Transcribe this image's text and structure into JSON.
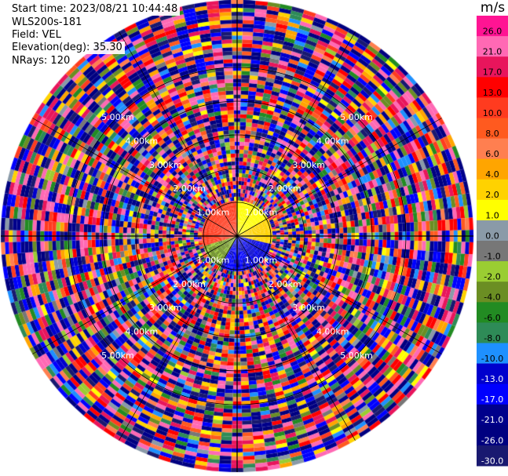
{
  "header": {
    "start_time": "Start time: 2023/08/21 10:44:48",
    "instrument": "WLS200s-181",
    "field": "Field: VEL",
    "elevation": "Elevation(deg): 35.30",
    "nrays": "NRays: 120"
  },
  "colorbar": {
    "unit": "m/s",
    "ticks": [
      "26.0",
      "21.0",
      "17.0",
      "13.0",
      "10.0",
      "8.0",
      "6.0",
      "4.0",
      "2.0",
      "1.0",
      "0.0",
      "-1.0",
      "-2.0",
      "-4.0",
      "-6.0",
      "-8.0",
      "-10.0",
      "-13.0",
      "-17.0",
      "-21.0",
      "-26.0",
      "-30.0"
    ],
    "colors": [
      "#ff1493",
      "#ff69b4",
      "#e8155c",
      "#ff0000",
      "#ff3b1f",
      "#ff5a1f",
      "#ff7f50",
      "#ffa500",
      "#ffd200",
      "#ffff00",
      "#8a9aa8",
      "#777777",
      "#9acd32",
      "#6b8e23",
      "#228b22",
      "#2e8b57",
      "#1e90ff",
      "#0000cd",
      "#0000ff",
      "#00008b",
      "#000080",
      "#191970"
    ]
  },
  "chart_data": {
    "type": "heatmap",
    "plot_kind": "polar PPI (plan position indicator)",
    "field": "VEL",
    "unit": "m/s",
    "nrays": 120,
    "elevation_deg": 35.3,
    "range_rings_km": [
      1.0,
      2.0,
      3.0,
      4.0,
      5.0
    ],
    "ring_labels": [
      "1.00km",
      "2.00km",
      "3.00km",
      "4.00km",
      "5.00km"
    ],
    "ring_label_bearings_deg": [
      45,
      135,
      225,
      315
    ],
    "value_range": [
      -30.0,
      26.0
    ],
    "near_range_pattern": "coherent velocities within ~1 km: ~10 m/s to the north-west, ~2 m/s to the east, ~-1 to -2 m/s to the south-west, ~-10 to -17 m/s to the south; beyond ~1 km the field is noise spanning the full colour scale"
  }
}
